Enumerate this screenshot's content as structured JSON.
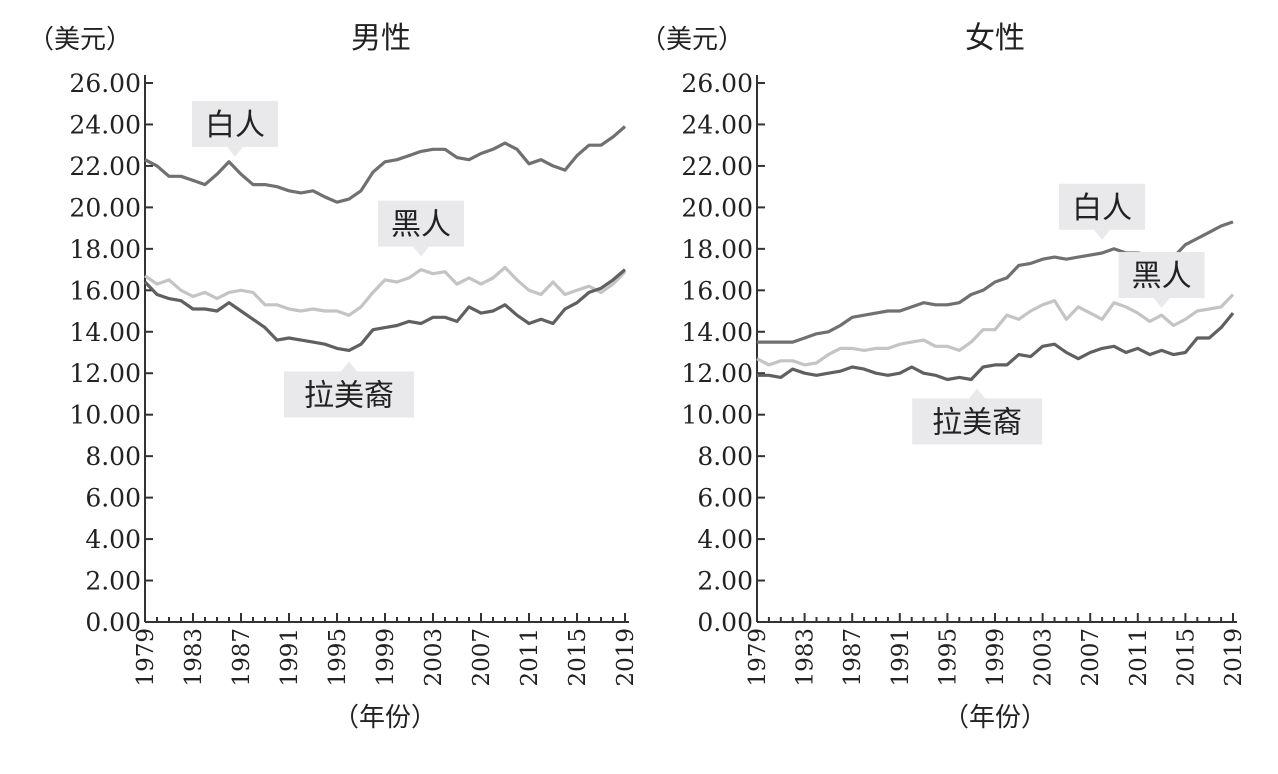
{
  "colors": {
    "white_series": "#707070",
    "hispanic_series": "#606060",
    "black_series": "#c4c4c4",
    "label_bg": "#e9e9ec",
    "axis": "#333333"
  },
  "chart_data": [
    {
      "type": "line",
      "title": "男性",
      "ylabel": "（美元）",
      "xlabel": "（年份）",
      "ylim": [
        0,
        26
      ],
      "xlim": [
        1979,
        2019
      ],
      "y_ticks": [
        "0.00",
        "2.00",
        "4.00",
        "6.00",
        "8.00",
        "10.00",
        "12.00",
        "14.00",
        "16.00",
        "18.00",
        "20.00",
        "22.00",
        "24.00",
        "26.00"
      ],
      "x_ticks": [
        "1979",
        "1983",
        "1987",
        "1991",
        "1995",
        "1999",
        "2003",
        "2007",
        "2011",
        "2015",
        "2019"
      ],
      "grid": false,
      "x": [
        1979,
        1980,
        1981,
        1982,
        1983,
        1984,
        1985,
        1986,
        1987,
        1988,
        1989,
        1990,
        1991,
        1992,
        1993,
        1994,
        1995,
        1996,
        1997,
        1998,
        1999,
        2000,
        2001,
        2002,
        2003,
        2004,
        2005,
        2006,
        2007,
        2008,
        2009,
        2010,
        2011,
        2012,
        2013,
        2014,
        2015,
        2016,
        2017,
        2018,
        2019
      ],
      "series": [
        {
          "name": "白人",
          "color_key": "white_series",
          "values": [
            22.3,
            22.0,
            21.5,
            21.5,
            21.3,
            21.1,
            21.6,
            22.2,
            21.6,
            21.1,
            21.1,
            21.0,
            20.8,
            20.7,
            20.8,
            20.5,
            20.25,
            20.4,
            20.8,
            21.7,
            22.2,
            22.3,
            22.5,
            22.7,
            22.8,
            22.8,
            22.4,
            22.3,
            22.6,
            22.8,
            23.1,
            22.8,
            22.1,
            22.3,
            22.0,
            21.8,
            22.5,
            23.0,
            23.0,
            23.4,
            23.9
          ],
          "label_pos": {
            "year": 1986.5,
            "value": 22.0
          }
        },
        {
          "name": "黑人",
          "color_key": "black_series",
          "values": [
            16.7,
            16.3,
            16.5,
            16.0,
            15.7,
            15.9,
            15.6,
            15.9,
            16.0,
            15.9,
            15.3,
            15.3,
            15.1,
            15.0,
            15.1,
            15.0,
            15.0,
            14.8,
            15.2,
            15.9,
            16.5,
            16.4,
            16.6,
            17.0,
            16.8,
            16.9,
            16.3,
            16.6,
            16.3,
            16.6,
            17.1,
            16.5,
            16.0,
            15.8,
            16.4,
            15.8,
            16.0,
            16.2,
            15.9,
            16.3,
            16.9
          ],
          "label_pos": {
            "year": 2002,
            "value": 17.0
          }
        },
        {
          "name": "拉美裔",
          "color_key": "hispanic_series",
          "values": [
            16.4,
            15.8,
            15.6,
            15.5,
            15.1,
            15.1,
            15.0,
            15.4,
            15.0,
            14.6,
            14.2,
            13.6,
            13.7,
            13.6,
            13.5,
            13.4,
            13.2,
            13.1,
            13.4,
            14.1,
            14.2,
            14.3,
            14.5,
            14.4,
            14.7,
            14.7,
            14.5,
            15.2,
            14.9,
            15.0,
            15.3,
            14.8,
            14.4,
            14.6,
            14.4,
            15.1,
            15.4,
            15.9,
            16.1,
            16.5,
            17.0
          ],
          "label_pos": {
            "year": 1996,
            "value": 13.0
          }
        }
      ]
    },
    {
      "type": "line",
      "title": "女性",
      "ylabel": "（美元）",
      "xlabel": "（年份）",
      "ylim": [
        0,
        26
      ],
      "xlim": [
        1979,
        2019
      ],
      "y_ticks": [
        "0.00",
        "2.00",
        "4.00",
        "6.00",
        "8.00",
        "10.00",
        "12.00",
        "14.00",
        "16.00",
        "18.00",
        "20.00",
        "22.00",
        "24.00",
        "26.00"
      ],
      "x_ticks": [
        "1979",
        "1983",
        "1987",
        "1991",
        "1995",
        "1999",
        "2003",
        "2007",
        "2011",
        "2015",
        "2019"
      ],
      "grid": false,
      "x": [
        1979,
        1980,
        1981,
        1982,
        1983,
        1984,
        1985,
        1986,
        1987,
        1988,
        1989,
        1990,
        1991,
        1992,
        1993,
        1994,
        1995,
        1996,
        1997,
        1998,
        1999,
        2000,
        2001,
        2002,
        2003,
        2004,
        2005,
        2006,
        2007,
        2008,
        2009,
        2010,
        2011,
        2012,
        2013,
        2014,
        2015,
        2016,
        2017,
        2018,
        2019
      ],
      "series": [
        {
          "name": "白人",
          "color_key": "white_series",
          "values": [
            13.5,
            13.5,
            13.5,
            13.5,
            13.7,
            13.9,
            14.0,
            14.3,
            14.7,
            14.8,
            14.9,
            15.0,
            15.0,
            15.2,
            15.4,
            15.3,
            15.3,
            15.4,
            15.8,
            16.0,
            16.4,
            16.6,
            17.2,
            17.3,
            17.5,
            17.6,
            17.5,
            17.6,
            17.7,
            17.8,
            18.0,
            17.8,
            17.8,
            17.7,
            17.7,
            17.6,
            18.2,
            18.5,
            18.8,
            19.1,
            19.3
          ],
          "label_pos": {
            "year": 2008,
            "value": 18.1
          }
        },
        {
          "name": "黑人",
          "color_key": "black_series",
          "values": [
            12.7,
            12.4,
            12.6,
            12.6,
            12.4,
            12.5,
            12.9,
            13.2,
            13.2,
            13.1,
            13.2,
            13.2,
            13.4,
            13.5,
            13.6,
            13.3,
            13.3,
            13.1,
            13.5,
            14.1,
            14.1,
            14.8,
            14.6,
            15.0,
            15.3,
            15.5,
            14.6,
            15.2,
            14.9,
            14.6,
            15.4,
            15.2,
            14.9,
            14.5,
            14.8,
            14.3,
            14.6,
            15.0,
            15.1,
            15.2,
            15.8
          ],
          "label_pos": {
            "year": 2013,
            "value": 15.0
          }
        },
        {
          "name": "拉美裔",
          "color_key": "hispanic_series",
          "values": [
            11.9,
            11.9,
            11.8,
            12.2,
            12.0,
            11.9,
            12.0,
            12.1,
            12.3,
            12.2,
            12.0,
            11.9,
            12.0,
            12.3,
            12.0,
            11.9,
            11.7,
            11.8,
            11.7,
            12.3,
            12.4,
            12.4,
            12.9,
            12.8,
            13.3,
            13.4,
            13.0,
            12.7,
            13.0,
            13.2,
            13.3,
            13.0,
            13.2,
            12.9,
            13.1,
            12.9,
            13.0,
            13.7,
            13.7,
            14.2,
            14.9
          ],
          "label_pos": {
            "year": 1997.5,
            "value": 11.7
          }
        }
      ]
    }
  ]
}
